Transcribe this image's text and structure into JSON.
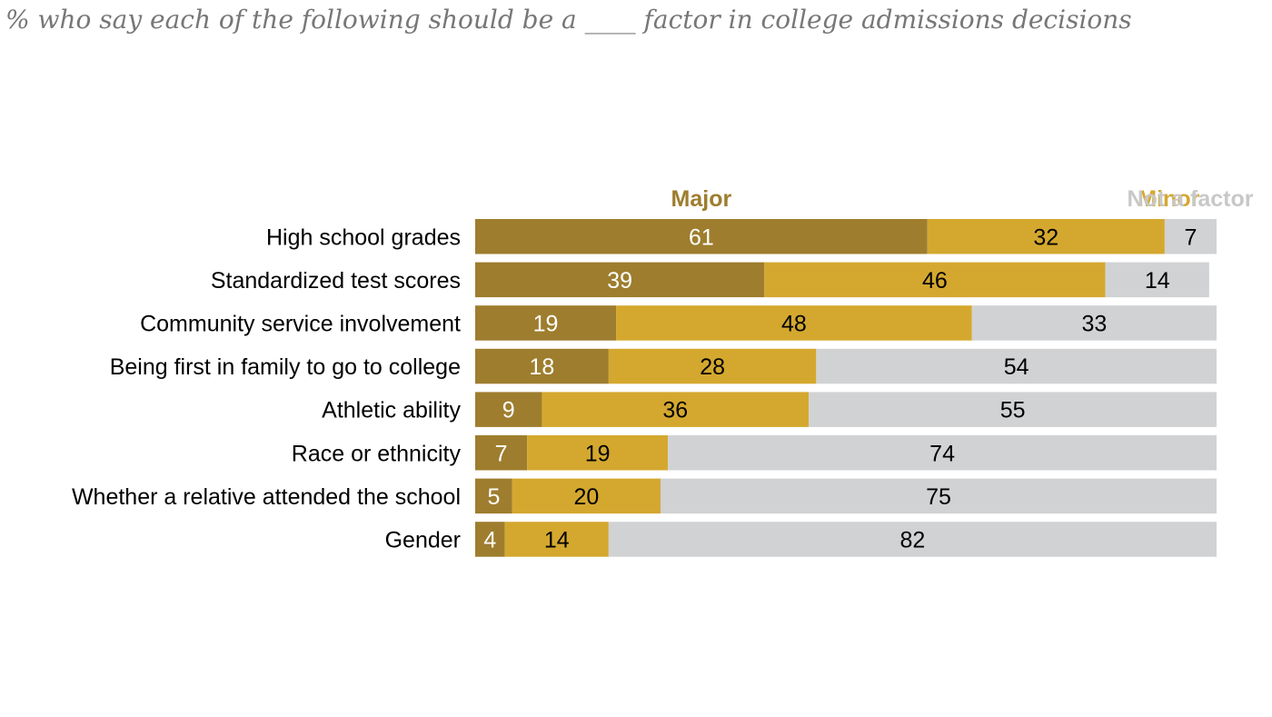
{
  "chart_data": {
    "type": "bar",
    "orientation": "horizontal",
    "stacked": true,
    "title": "% who say each of the following should be a ____ factor in college admissions decisions",
    "categories": [
      "High school grades",
      "Standardized test scores",
      "Community service involvement",
      "Being first in family to go to college",
      "Athletic ability",
      "Race or ethnicity",
      "Whether a relative attended the school",
      "Gender"
    ],
    "series": [
      {
        "name": "Major",
        "color": "#9e7d2e",
        "label_color": "#ffffff",
        "values": [
          61,
          39,
          19,
          18,
          9,
          7,
          5,
          4
        ]
      },
      {
        "name": "Minor",
        "color": "#d4a82f",
        "label_color": "#000000",
        "values": [
          32,
          46,
          48,
          28,
          36,
          19,
          20,
          14
        ]
      },
      {
        "name": "Not a factor",
        "color": "#d1d2d4",
        "label_color": "#000000",
        "values": [
          7,
          14,
          33,
          54,
          55,
          74,
          75,
          82
        ]
      }
    ],
    "legend_colors": [
      "#9e7d2e",
      "#d4a82f",
      "#c8c8c8"
    ],
    "xlim": [
      0,
      100
    ],
    "grid": false,
    "legend_position": "top"
  }
}
